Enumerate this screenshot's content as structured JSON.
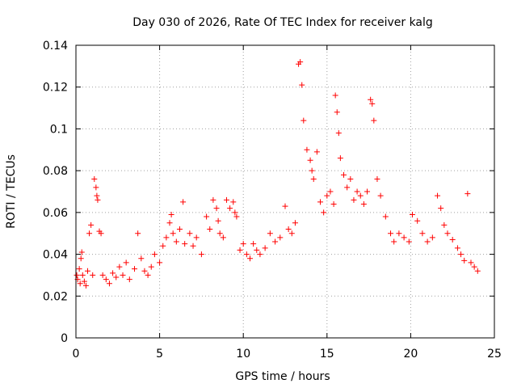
{
  "chart_data": {
    "type": "scatter",
    "title": "Day 030 of 2026, Rate Of TEC Index for receiver kalg",
    "xlabel": "GPS time / hours",
    "ylabel": "ROTI / TECUs",
    "xlim": [
      0,
      25
    ],
    "ylim": [
      0,
      0.14
    ],
    "xticks": [
      0,
      5,
      10,
      15,
      20,
      25
    ],
    "xtick_labels": [
      "0",
      "5",
      "10",
      "15",
      "20",
      "25"
    ],
    "yticks": [
      0,
      0.02,
      0.04,
      0.06,
      0.08,
      0.1,
      0.12,
      0.14
    ],
    "ytick_labels": [
      "0",
      "0.02",
      "0.04",
      "0.06",
      "0.08",
      "0.1",
      "0.12",
      "0.14"
    ],
    "grid": true,
    "marker": "plus",
    "color": "#ff0000",
    "series": [
      {
        "x": [
          0.05,
          0.1,
          0.2,
          0.25,
          0.3,
          0.35,
          0.4,
          0.5,
          0.6,
          0.7,
          0.8,
          0.9,
          1.0,
          1.1,
          1.2,
          1.25,
          1.3,
          1.4,
          1.5,
          1.6,
          1.8,
          2.0,
          2.2,
          2.4,
          2.6,
          2.8,
          3.0,
          3.2,
          3.5,
          3.7,
          3.9,
          4.1,
          4.3,
          4.5,
          4.7,
          5.0,
          5.2,
          5.4,
          5.6,
          5.7,
          5.8,
          6.0,
          6.2,
          6.4,
          6.5,
          6.8,
          7.0,
          7.2,
          7.5,
          7.8,
          8.0,
          8.2,
          8.4,
          8.5,
          8.6,
          8.8,
          9.0,
          9.2,
          9.4,
          9.5,
          9.6,
          9.8,
          10.0,
          10.2,
          10.4,
          10.6,
          10.8,
          11.0,
          11.3,
          11.6,
          11.9,
          12.2,
          12.5,
          12.7,
          12.9,
          13.1,
          13.3,
          13.4,
          13.5,
          13.6,
          13.8,
          14.0,
          14.1,
          14.2,
          14.4,
          14.6,
          14.8,
          15.0,
          15.2,
          15.4,
          15.5,
          15.6,
          15.7,
          15.8,
          16.0,
          16.2,
          16.4,
          16.6,
          16.8,
          17.0,
          17.2,
          17.4,
          17.6,
          17.7,
          17.8,
          18.0,
          18.2,
          18.5,
          18.8,
          19.0,
          19.3,
          19.6,
          19.9,
          20.1,
          20.4,
          20.7,
          21.0,
          21.3,
          21.6,
          21.8,
          22.0,
          22.2,
          22.5,
          22.8,
          23.0,
          23.2,
          23.4,
          23.6,
          23.8,
          24.0
        ],
        "y": [
          0.03,
          0.028,
          0.033,
          0.026,
          0.038,
          0.041,
          0.03,
          0.027,
          0.025,
          0.032,
          0.05,
          0.054,
          0.03,
          0.076,
          0.072,
          0.068,
          0.066,
          0.051,
          0.05,
          0.03,
          0.028,
          0.026,
          0.031,
          0.029,
          0.034,
          0.03,
          0.036,
          0.028,
          0.033,
          0.05,
          0.038,
          0.032,
          0.03,
          0.034,
          0.04,
          0.036,
          0.044,
          0.048,
          0.055,
          0.059,
          0.05,
          0.046,
          0.052,
          0.065,
          0.045,
          0.05,
          0.044,
          0.048,
          0.04,
          0.058,
          0.052,
          0.066,
          0.062,
          0.056,
          0.05,
          0.048,
          0.066,
          0.062,
          0.065,
          0.06,
          0.058,
          0.042,
          0.045,
          0.04,
          0.038,
          0.045,
          0.042,
          0.04,
          0.043,
          0.05,
          0.046,
          0.048,
          0.063,
          0.052,
          0.05,
          0.055,
          0.131,
          0.132,
          0.121,
          0.104,
          0.09,
          0.085,
          0.08,
          0.076,
          0.089,
          0.065,
          0.06,
          0.068,
          0.07,
          0.064,
          0.116,
          0.108,
          0.098,
          0.086,
          0.078,
          0.072,
          0.076,
          0.066,
          0.07,
          0.068,
          0.064,
          0.07,
          0.114,
          0.112,
          0.104,
          0.076,
          0.068,
          0.058,
          0.05,
          0.046,
          0.05,
          0.048,
          0.046,
          0.059,
          0.056,
          0.05,
          0.046,
          0.048,
          0.068,
          0.062,
          0.054,
          0.05,
          0.047,
          0.043,
          0.04,
          0.037,
          0.069,
          0.036,
          0.034,
          0.032
        ]
      }
    ]
  }
}
